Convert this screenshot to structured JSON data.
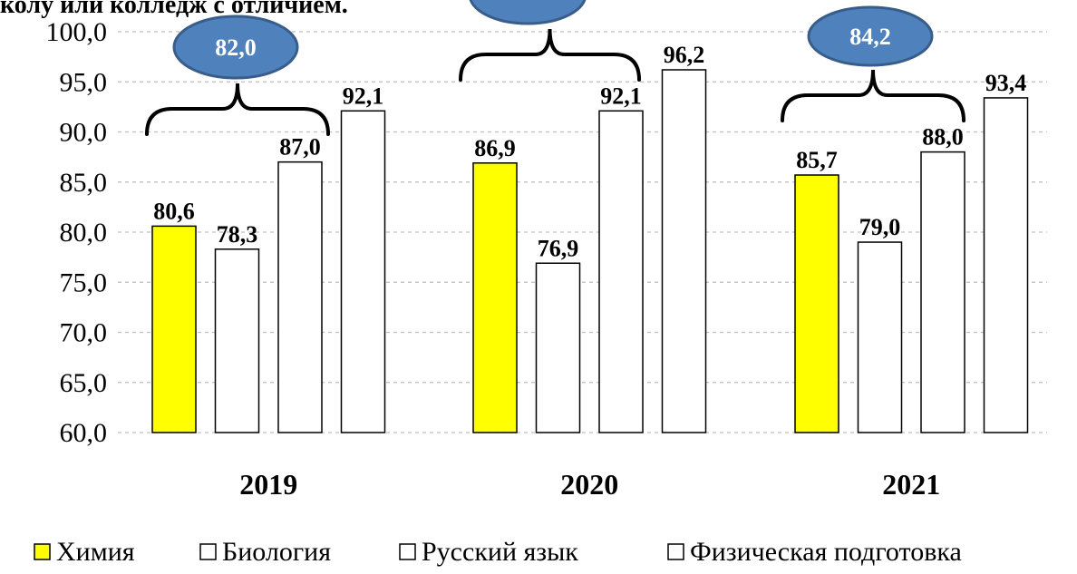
{
  "header_fragment": "колу или колледж с отличием.",
  "chart_data": {
    "type": "bar",
    "categories": [
      "2019",
      "2020",
      "2021"
    ],
    "series": [
      {
        "name": "Химия",
        "values": [
          80.6,
          86.9,
          85.7
        ]
      },
      {
        "name": "Биология",
        "values": [
          78.3,
          76.9,
          79.0
        ]
      },
      {
        "name": "Русский язык",
        "values": [
          87.0,
          92.1,
          88.0
        ]
      },
      {
        "name": "Физическая подготовка",
        "values": [
          92.1,
          96.2,
          93.4
        ]
      }
    ],
    "ylim": [
      60,
      100
    ],
    "yticks": [
      "60,0",
      "65,0",
      "70,0",
      "75,0",
      "80,0",
      "85,0",
      "90,0",
      "95,0",
      "100,0"
    ],
    "grid": true,
    "legend_position": "bottom",
    "group_averages": [
      {
        "category": "2019",
        "label": "82,0"
      },
      {
        "category": "2020",
        "label": ""
      },
      {
        "category": "2021",
        "label": "84,2"
      }
    ],
    "colors": {
      "Химия": "#ffff00",
      "Биология": "#ffffff",
      "Русский язык": "#ffffff",
      "Физическая подготовка": "#ffffff",
      "bar_stroke": "#000000",
      "grid": "#bfbfbf",
      "callout_fill": "#4f81bd",
      "callout_stroke": "#385d8a",
      "callout_text": "#ffffff"
    }
  }
}
